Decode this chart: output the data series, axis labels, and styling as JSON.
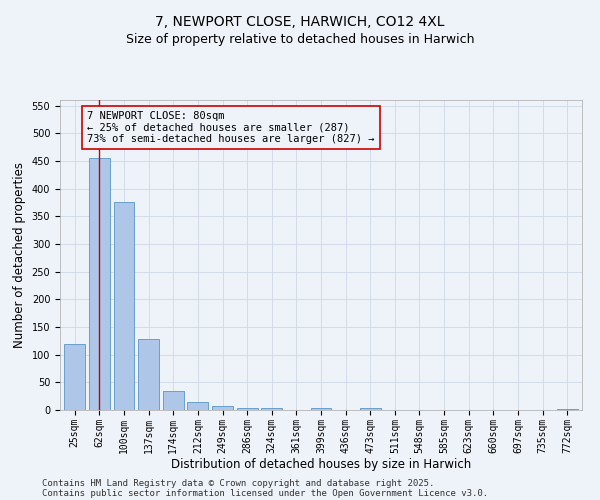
{
  "title": "7, NEWPORT CLOSE, HARWICH, CO12 4XL",
  "subtitle": "Size of property relative to detached houses in Harwich",
  "xlabel": "Distribution of detached houses by size in Harwich",
  "ylabel": "Number of detached properties",
  "categories": [
    "25sqm",
    "62sqm",
    "100sqm",
    "137sqm",
    "174sqm",
    "212sqm",
    "249sqm",
    "286sqm",
    "324sqm",
    "361sqm",
    "399sqm",
    "436sqm",
    "473sqm",
    "511sqm",
    "548sqm",
    "585sqm",
    "623sqm",
    "660sqm",
    "697sqm",
    "735sqm",
    "772sqm"
  ],
  "values": [
    120,
    456,
    375,
    128,
    35,
    14,
    8,
    4,
    4,
    0,
    3,
    0,
    4,
    0,
    0,
    0,
    0,
    0,
    0,
    0,
    2
  ],
  "bar_color": "#aec6e8",
  "bar_edge_color": "#5a96c8",
  "vline_x": 1.0,
  "vline_color": "#cc0000",
  "annotation_text": "7 NEWPORT CLOSE: 80sqm\n← 25% of detached houses are smaller (287)\n73% of semi-detached houses are larger (827) →",
  "annotation_box_color": "#cc0000",
  "ylim": [
    0,
    560
  ],
  "yticks": [
    0,
    50,
    100,
    150,
    200,
    250,
    300,
    350,
    400,
    450,
    500,
    550
  ],
  "grid_color": "#d0d8e8",
  "bg_color": "#eef2f9",
  "footer_line1": "Contains HM Land Registry data © Crown copyright and database right 2025.",
  "footer_line2": "Contains public sector information licensed under the Open Government Licence v3.0.",
  "title_fontsize": 10,
  "subtitle_fontsize": 9,
  "label_fontsize": 8.5,
  "tick_fontsize": 7,
  "footer_fontsize": 6.5,
  "annot_fontsize": 7.5
}
